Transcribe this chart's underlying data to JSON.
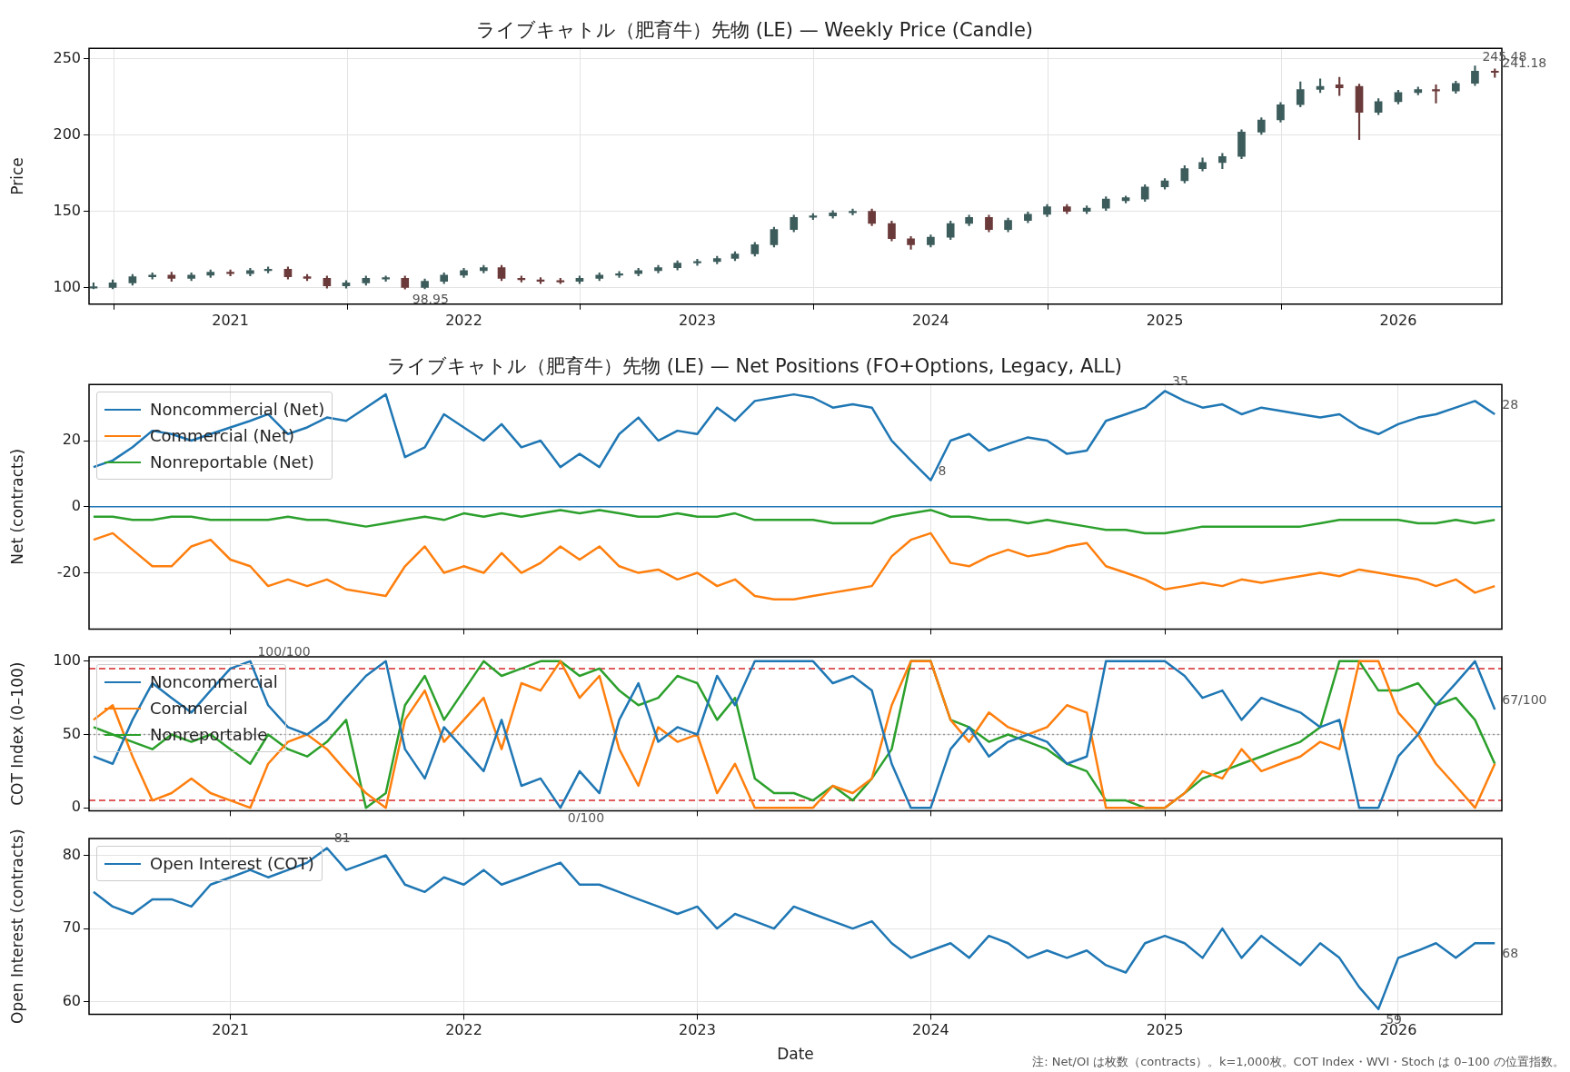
{
  "chart_data": [
    {
      "type": "candlestick",
      "title": "ライブキャトル（肥育牛）先物 (LE) — Weekly Price (Candle)",
      "ylabel": "Price",
      "colors": [
        "#3d5c5c",
        "#3d5c5c",
        "#3d5c5c",
        "#3d5c5c",
        "#6b3a3a",
        "#3d5c5c",
        "#3d5c5c",
        "#6b3a3a",
        "#3d5c5c",
        "#3d5c5c",
        "#6b3a3a",
        "#6b3a3a",
        "#6b3a3a",
        "#3d5c5c",
        "#3d5c5c",
        "#3d5c5c",
        "#6b3a3a",
        "#3d5c5c",
        "#3d5c5c",
        "#3d5c5c",
        "#3d5c5c",
        "#6b3a3a",
        "#6b3a3a",
        "#6b3a3a",
        "#6b3a3a",
        "#3d5c5c",
        "#3d5c5c",
        "#3d5c5c",
        "#3d5c5c",
        "#3d5c5c",
        "#3d5c5c",
        "#3d5c5c",
        "#3d5c5c",
        "#3d5c5c",
        "#3d5c5c",
        "#3d5c5c",
        "#3d5c5c",
        "#3d5c5c",
        "#3d5c5c",
        "#3d5c5c",
        "#6b3a3a",
        "#6b3a3a",
        "#6b3a3a",
        "#3d5c5c",
        "#3d5c5c",
        "#3d5c5c",
        "#6b3a3a",
        "#3d5c5c",
        "#3d5c5c",
        "#3d5c5c",
        "#6b3a3a",
        "#3d5c5c",
        "#3d5c5c",
        "#3d5c5c",
        "#3d5c5c",
        "#3d5c5c",
        "#3d5c5c",
        "#3d5c5c",
        "#3d5c5c",
        "#3d5c5c",
        "#3d5c5c",
        "#3d5c5c",
        "#3d5c5c",
        "#3d5c5c",
        "#6b3a3a",
        "#6b3a3a",
        "#3d5c5c",
        "#3d5c5c",
        "#3d5c5c",
        "#6b3a3a",
        "#3d5c5c",
        "#3d5c5c",
        "#6b3a3a"
      ],
      "x": [
        "2020-06",
        "2020-07",
        "2020-08",
        "2020-09",
        "2020-10",
        "2020-11",
        "2020-12",
        "2021-01",
        "2021-02",
        "2021-03",
        "2021-04",
        "2021-05",
        "2021-06",
        "2021-07",
        "2021-08",
        "2021-09",
        "2021-10",
        "2021-11",
        "2021-12",
        "2022-01",
        "2022-02",
        "2022-03",
        "2022-04",
        "2022-05",
        "2022-06",
        "2022-07",
        "2022-08",
        "2022-09",
        "2022-10",
        "2022-11",
        "2022-12",
        "2023-01",
        "2023-02",
        "2023-03",
        "2023-04",
        "2023-05",
        "2023-06",
        "2023-07",
        "2023-08",
        "2023-09",
        "2023-10",
        "2023-11",
        "2023-12",
        "2024-01",
        "2024-02",
        "2024-03",
        "2024-04",
        "2024-05",
        "2024-06",
        "2024-07",
        "2024-08",
        "2024-09",
        "2024-10",
        "2024-11",
        "2024-12",
        "2025-01",
        "2025-02",
        "2025-03",
        "2025-04",
        "2025-05",
        "2025-06",
        "2025-07",
        "2025-08",
        "2025-09",
        "2025-10",
        "2025-11",
        "2025-12",
        "2026-01",
        "2026-02",
        "2026-03",
        "2026-04",
        "2026-05",
        "2026-06"
      ],
      "ohlc": [
        [
          99.5,
          103,
          99,
          100
        ],
        [
          100,
          105,
          99,
          103
        ],
        [
          103,
          108.5,
          101.5,
          107
        ],
        [
          107,
          109.5,
          105.5,
          108
        ],
        [
          108,
          110,
          104,
          106
        ],
        [
          106,
          109.5,
          104.5,
          108
        ],
        [
          108,
          111.5,
          106.5,
          110
        ],
        [
          110,
          111.5,
          107.5,
          109
        ],
        [
          109,
          112.5,
          107.5,
          111
        ],
        [
          111,
          113.5,
          109.5,
          112
        ],
        [
          112,
          113.5,
          105.5,
          107
        ],
        [
          107,
          108.5,
          104.5,
          106
        ],
        [
          106,
          107.5,
          99.5,
          101
        ],
        [
          101,
          104.5,
          99.5,
          103
        ],
        [
          103,
          107.5,
          101.5,
          106
        ],
        [
          105.5,
          107.5,
          104,
          106.5
        ],
        [
          106,
          107.5,
          98.95,
          100
        ],
        [
          100,
          105.5,
          99,
          104
        ],
        [
          104,
          109.5,
          102.5,
          108
        ],
        [
          108,
          112.5,
          106.5,
          111
        ],
        [
          111,
          114.5,
          109.5,
          113
        ],
        [
          113,
          114.5,
          104.5,
          106
        ],
        [
          106,
          107.5,
          103.5,
          105
        ],
        [
          105,
          106.5,
          102.5,
          104
        ],
        [
          104.5,
          106,
          102.5,
          103.5
        ],
        [
          104,
          107.5,
          102.5,
          106
        ],
        [
          106,
          109.5,
          104.5,
          108
        ],
        [
          108,
          110.5,
          106.5,
          109
        ],
        [
          109,
          112.5,
          107.5,
          111
        ],
        [
          111,
          114.5,
          109.5,
          113
        ],
        [
          113,
          117.5,
          111.5,
          116
        ],
        [
          116,
          118.5,
          114.5,
          117
        ],
        [
          117,
          120.5,
          115.5,
          119
        ],
        [
          119,
          123.5,
          117.5,
          122
        ],
        [
          122,
          129.5,
          120.5,
          128
        ],
        [
          128,
          139.5,
          126.5,
          138
        ],
        [
          138,
          147.5,
          136.5,
          146
        ],
        [
          146,
          148.5,
          144.5,
          147
        ],
        [
          147,
          150.5,
          145.5,
          149
        ],
        [
          149,
          151.5,
          147.5,
          150
        ],
        [
          150,
          151.5,
          140.5,
          142
        ],
        [
          142,
          143.5,
          130.5,
          132
        ],
        [
          132,
          133.5,
          125,
          128
        ],
        [
          128,
          134.5,
          126.5,
          133
        ],
        [
          133,
          143.5,
          131.5,
          142
        ],
        [
          142,
          147.5,
          140.5,
          146
        ],
        [
          146,
          147.5,
          136.5,
          138
        ],
        [
          138,
          145.5,
          136.5,
          144
        ],
        [
          144,
          149.5,
          142.5,
          148
        ],
        [
          148,
          154.5,
          146.5,
          153
        ],
        [
          153,
          154.5,
          148.5,
          150
        ],
        [
          150,
          153.5,
          148.5,
          152
        ],
        [
          152,
          159.5,
          150.5,
          158
        ],
        [
          157,
          160,
          155.5,
          159
        ],
        [
          158,
          167.5,
          156.5,
          166
        ],
        [
          166,
          171.5,
          164.5,
          170
        ],
        [
          170,
          180,
          168.5,
          178
        ],
        [
          178,
          185,
          176.5,
          182
        ],
        [
          182,
          188,
          178,
          186
        ],
        [
          186,
          203.5,
          184.5,
          202
        ],
        [
          202,
          211.5,
          200.5,
          210
        ],
        [
          210,
          221.5,
          208.5,
          220
        ],
        [
          220,
          235,
          218.5,
          230
        ],
        [
          230,
          237,
          228,
          232
        ],
        [
          233,
          238,
          226,
          231
        ],
        [
          232,
          233.5,
          197,
          215
        ],
        [
          215,
          224,
          213.5,
          222
        ],
        [
          222,
          229.5,
          220.5,
          228
        ],
        [
          228,
          231.5,
          226.5,
          230
        ],
        [
          230,
          233,
          221,
          229
        ],
        [
          229,
          235.5,
          227.5,
          234
        ],
        [
          234,
          245.48,
          232.5,
          242
        ],
        [
          242,
          243.5,
          238,
          241.18
        ]
      ],
      "xlim": [
        "2020-05-25",
        "2026-06-12"
      ],
      "xticks": [
        "2021",
        "2022",
        "2023",
        "2024",
        "2025",
        "2026"
      ],
      "ylim": [
        89,
        257
      ],
      "yticks": [
        100,
        150,
        200,
        250
      ],
      "grid": true,
      "annotations": [
        {
          "text": "98.95",
          "x": "2021-10",
          "y": 98.95
        },
        {
          "text": "245.48",
          "x": "2026-05",
          "y": 245.48
        },
        {
          "text": "241.18",
          "x": "2026-06",
          "y": 241.18
        }
      ]
    },
    {
      "type": "line",
      "title": "ライブキャトル（肥育牛）先物 (LE) — Net Positions (FO+Options, Legacy, ALL)",
      "ylabel": "Net (contracts)",
      "x": [
        "2020-06",
        "2020-07",
        "2020-08",
        "2020-09",
        "2020-10",
        "2020-11",
        "2020-12",
        "2021-01",
        "2021-02",
        "2021-03",
        "2021-04",
        "2021-05",
        "2021-06",
        "2021-07",
        "2021-08",
        "2021-09",
        "2021-10",
        "2021-11",
        "2021-12",
        "2022-01",
        "2022-02",
        "2022-03",
        "2022-04",
        "2022-05",
        "2022-06",
        "2022-07",
        "2022-08",
        "2022-09",
        "2022-10",
        "2022-11",
        "2022-12",
        "2023-01",
        "2023-02",
        "2023-03",
        "2023-04",
        "2023-05",
        "2023-06",
        "2023-07",
        "2023-08",
        "2023-09",
        "2023-10",
        "2023-11",
        "2023-12",
        "2024-01",
        "2024-02",
        "2024-03",
        "2024-04",
        "2024-05",
        "2024-06",
        "2024-07",
        "2024-08",
        "2024-09",
        "2024-10",
        "2024-11",
        "2024-12",
        "2025-01",
        "2025-02",
        "2025-03",
        "2025-04",
        "2025-05",
        "2025-06",
        "2025-07",
        "2025-08",
        "2025-09",
        "2025-10",
        "2025-11",
        "2025-12",
        "2026-01",
        "2026-02",
        "2026-03",
        "2026-04",
        "2026-05",
        "2026-06"
      ],
      "series": [
        {
          "name": "Noncommercial (Net)",
          "color": "#1f77b4",
          "values": [
            12,
            14,
            18,
            23,
            22,
            20,
            22,
            24,
            26,
            28,
            22,
            24,
            27,
            26,
            30,
            34,
            15,
            18,
            28,
            24,
            20,
            25,
            18,
            20,
            12,
            16,
            12,
            22,
            27,
            20,
            23,
            22,
            30,
            26,
            32,
            33,
            34,
            33,
            30,
            31,
            30,
            20,
            14,
            8,
            20,
            22,
            17,
            19,
            21,
            20,
            16,
            17,
            26,
            28,
            30,
            35,
            32,
            30,
            31,
            28,
            30,
            29,
            28,
            27,
            28,
            24,
            22,
            25,
            27,
            28,
            30,
            32,
            28
          ]
        },
        {
          "name": "Commercial (Net)",
          "color": "#ff7f0e",
          "values": [
            -10,
            -8,
            -13,
            -18,
            -18,
            -12,
            -10,
            -16,
            -18,
            -24,
            -22,
            -24,
            -22,
            -25,
            -26,
            -27,
            -18,
            -12,
            -20,
            -18,
            -20,
            -14,
            -20,
            -17,
            -12,
            -16,
            -12,
            -18,
            -20,
            -19,
            -22,
            -20,
            -24,
            -22,
            -27,
            -28,
            -28,
            -27,
            -26,
            -25,
            -24,
            -15,
            -10,
            -8,
            -17,
            -18,
            -15,
            -13,
            -15,
            -14,
            -12,
            -11,
            -18,
            -20,
            -22,
            -25,
            -24,
            -23,
            -24,
            -22,
            -23,
            -22,
            -21,
            -20,
            -21,
            -19,
            -20,
            -21,
            -22,
            -24,
            -22,
            -26,
            -24
          ]
        },
        {
          "name": "Nonreportable (Net)",
          "color": "#2ca02c",
          "values": [
            -3,
            -3,
            -4,
            -4,
            -3,
            -3,
            -4,
            -4,
            -4,
            -4,
            -3,
            -4,
            -4,
            -5,
            -6,
            -5,
            -4,
            -3,
            -4,
            -2,
            -3,
            -2,
            -3,
            -2,
            -1,
            -2,
            -1,
            -2,
            -3,
            -3,
            -2,
            -3,
            -3,
            -2,
            -4,
            -4,
            -4,
            -4,
            -5,
            -5,
            -5,
            -3,
            -2,
            -1,
            -3,
            -3,
            -4,
            -4,
            -5,
            -4,
            -5,
            -6,
            -7,
            -7,
            -8,
            -8,
            -7,
            -6,
            -6,
            -6,
            -6,
            -6,
            -6,
            -5,
            -4,
            -4,
            -4,
            -4,
            -5,
            -5,
            -4,
            -5,
            -4
          ]
        }
      ],
      "xlim": [
        "2020-05-25",
        "2026-06-12"
      ],
      "xticks": [
        "2021",
        "2022",
        "2023",
        "2024",
        "2025",
        "2026"
      ],
      "ylim": [
        -37,
        37
      ],
      "yticks": [
        -20,
        0,
        20
      ],
      "grid": true,
      "legend": "top left",
      "tick_labels": "y",
      "ref_lines": [
        {
          "axis": "y",
          "value": 0,
          "color": "#1f77b4",
          "line_style": "solid"
        }
      ],
      "annotations": [
        {
          "text": "35",
          "x": "2025-01",
          "y": 35
        },
        {
          "text": "8",
          "x": "2024-01",
          "y": 8
        },
        {
          "text": "28",
          "x": "2026-06",
          "y": 28
        }
      ]
    },
    {
      "type": "line",
      "ylabel": "COT Index (0–100)",
      "x": [
        "2020-06",
        "2020-07",
        "2020-08",
        "2020-09",
        "2020-10",
        "2020-11",
        "2020-12",
        "2021-01",
        "2021-02",
        "2021-03",
        "2021-04",
        "2021-05",
        "2021-06",
        "2021-07",
        "2021-08",
        "2021-09",
        "2021-10",
        "2021-11",
        "2021-12",
        "2022-01",
        "2022-02",
        "2022-03",
        "2022-04",
        "2022-05",
        "2022-06",
        "2022-07",
        "2022-08",
        "2022-09",
        "2022-10",
        "2022-11",
        "2022-12",
        "2023-01",
        "2023-02",
        "2023-03",
        "2023-04",
        "2023-05",
        "2023-06",
        "2023-07",
        "2023-08",
        "2023-09",
        "2023-10",
        "2023-11",
        "2023-12",
        "2024-01",
        "2024-02",
        "2024-03",
        "2024-04",
        "2024-05",
        "2024-06",
        "2024-07",
        "2024-08",
        "2024-09",
        "2024-10",
        "2024-11",
        "2024-12",
        "2025-01",
        "2025-02",
        "2025-03",
        "2025-04",
        "2025-05",
        "2025-06",
        "2025-07",
        "2025-08",
        "2025-09",
        "2025-10",
        "2025-11",
        "2025-12",
        "2026-01",
        "2026-02",
        "2026-03",
        "2026-04",
        "2026-05",
        "2026-06"
      ],
      "series": [
        {
          "name": "Noncommercial",
          "color": "#1f77b4",
          "values": [
            35,
            30,
            60,
            85,
            75,
            65,
            80,
            95,
            100,
            70,
            55,
            50,
            60,
            75,
            90,
            100,
            40,
            20,
            55,
            40,
            25,
            60,
            15,
            20,
            0,
            25,
            10,
            60,
            85,
            45,
            55,
            50,
            90,
            70,
            100,
            100,
            100,
            100,
            85,
            90,
            80,
            30,
            0,
            0,
            40,
            55,
            35,
            45,
            50,
            45,
            30,
            35,
            100,
            100,
            100,
            100,
            90,
            75,
            80,
            60,
            75,
            70,
            65,
            55,
            60,
            0,
            0,
            35,
            50,
            70,
            85,
            100,
            67
          ]
        },
        {
          "name": "Commercial",
          "color": "#ff7f0e",
          "values": [
            60,
            70,
            35,
            5,
            10,
            20,
            10,
            5,
            0,
            30,
            45,
            50,
            40,
            25,
            10,
            0,
            60,
            80,
            45,
            60,
            75,
            40,
            85,
            80,
            100,
            75,
            90,
            40,
            15,
            55,
            45,
            50,
            10,
            30,
            0,
            0,
            0,
            0,
            15,
            10,
            20,
            70,
            100,
            100,
            60,
            45,
            65,
            55,
            50,
            55,
            70,
            65,
            0,
            0,
            0,
            0,
            10,
            25,
            20,
            40,
            25,
            30,
            35,
            45,
            40,
            100,
            100,
            65,
            50,
            30,
            15,
            0,
            30
          ]
        },
        {
          "name": "Nonreportable",
          "color": "#2ca02c",
          "values": [
            55,
            50,
            45,
            40,
            50,
            45,
            50,
            40,
            30,
            50,
            40,
            35,
            45,
            60,
            0,
            10,
            70,
            90,
            60,
            80,
            100,
            90,
            95,
            100,
            100,
            90,
            95,
            80,
            70,
            75,
            90,
            85,
            60,
            75,
            20,
            10,
            10,
            5,
            15,
            5,
            20,
            40,
            100,
            100,
            60,
            55,
            45,
            50,
            45,
            40,
            30,
            25,
            5,
            5,
            0,
            0,
            10,
            20,
            25,
            30,
            35,
            40,
            45,
            55,
            100,
            100,
            80,
            80,
            85,
            70,
            75,
            60,
            30
          ]
        }
      ],
      "xlim": [
        "2020-05-25",
        "2026-06-12"
      ],
      "xticks": [
        "2021",
        "2022",
        "2023",
        "2024",
        "2025",
        "2026"
      ],
      "ylim": [
        -2,
        103
      ],
      "yticks": [
        0,
        50,
        100
      ],
      "grid": true,
      "legend": "top left",
      "tick_labels": "y",
      "ref_lines": [
        {
          "axis": "y",
          "value": 95,
          "color": "#d62728",
          "line_style": "dashed"
        },
        {
          "axis": "y",
          "value": 5,
          "color": "#d62728",
          "line_style": "dashed"
        },
        {
          "axis": "y",
          "value": 50,
          "color": "#999999",
          "line_style": "dotted"
        }
      ],
      "annotations": [
        {
          "text": "100/100",
          "x": "2021-02",
          "y": 100
        },
        {
          "text": "0/100",
          "x": "2022-06",
          "y": 0
        },
        {
          "text": "67/100",
          "x": "2026-06",
          "y": 67
        }
      ]
    },
    {
      "type": "line",
      "xlabel": "Date",
      "ylabel": "Open Interest (contracts)",
      "x": [
        "2020-06",
        "2020-07",
        "2020-08",
        "2020-09",
        "2020-10",
        "2020-11",
        "2020-12",
        "2021-01",
        "2021-02",
        "2021-03",
        "2021-04",
        "2021-05",
        "2021-06",
        "2021-07",
        "2021-08",
        "2021-09",
        "2021-10",
        "2021-11",
        "2021-12",
        "2022-01",
        "2022-02",
        "2022-03",
        "2022-04",
        "2022-05",
        "2022-06",
        "2022-07",
        "2022-08",
        "2022-09",
        "2022-10",
        "2022-11",
        "2022-12",
        "2023-01",
        "2023-02",
        "2023-03",
        "2023-04",
        "2023-05",
        "2023-06",
        "2023-07",
        "2023-08",
        "2023-09",
        "2023-10",
        "2023-11",
        "2023-12",
        "2024-01",
        "2024-02",
        "2024-03",
        "2024-04",
        "2024-05",
        "2024-06",
        "2024-07",
        "2024-08",
        "2024-09",
        "2024-10",
        "2024-11",
        "2024-12",
        "2025-01",
        "2025-02",
        "2025-03",
        "2025-04",
        "2025-05",
        "2025-06",
        "2025-07",
        "2025-08",
        "2025-09",
        "2025-10",
        "2025-11",
        "2025-12",
        "2026-01",
        "2026-02",
        "2026-03",
        "2026-04",
        "2026-05",
        "2026-06"
      ],
      "series": [
        {
          "name": "Open Interest (COT)",
          "color": "#1f77b4",
          "values": [
            75,
            73,
            72,
            74,
            74,
            73,
            76,
            77,
            78,
            77,
            78,
            79,
            81,
            78,
            79,
            80,
            76,
            75,
            77,
            76,
            78,
            76,
            77,
            78,
            79,
            76,
            76,
            75,
            74,
            73,
            72,
            73,
            70,
            72,
            71,
            70,
            73,
            72,
            71,
            70,
            71,
            68,
            66,
            67,
            68,
            66,
            69,
            68,
            66,
            67,
            66,
            67,
            65,
            64,
            68,
            69,
            68,
            66,
            70,
            66,
            69,
            67,
            65,
            68,
            66,
            62,
            59,
            66,
            67,
            68,
            66,
            68,
            68
          ]
        }
      ],
      "xlim": [
        "2020-05-25",
        "2026-06-12"
      ],
      "xticks": [
        "2021",
        "2022",
        "2023",
        "2024",
        "2025",
        "2026"
      ],
      "ylim": [
        58.3,
        82.3
      ],
      "yticks": [
        60,
        70,
        80
      ],
      "grid": true,
      "legend": "top left",
      "annotations": [
        {
          "text": "81",
          "x": "2021-06",
          "y": 81
        },
        {
          "text": "59",
          "x": "2025-12",
          "y": 59
        },
        {
          "text": "68",
          "x": "2026-06",
          "y": 68
        },
        "注: Net/OI は枚数（contracts）。k=1,000枚。COT Index・WVI・Stoch は 0–100 の位置指数。"
      ]
    }
  ]
}
